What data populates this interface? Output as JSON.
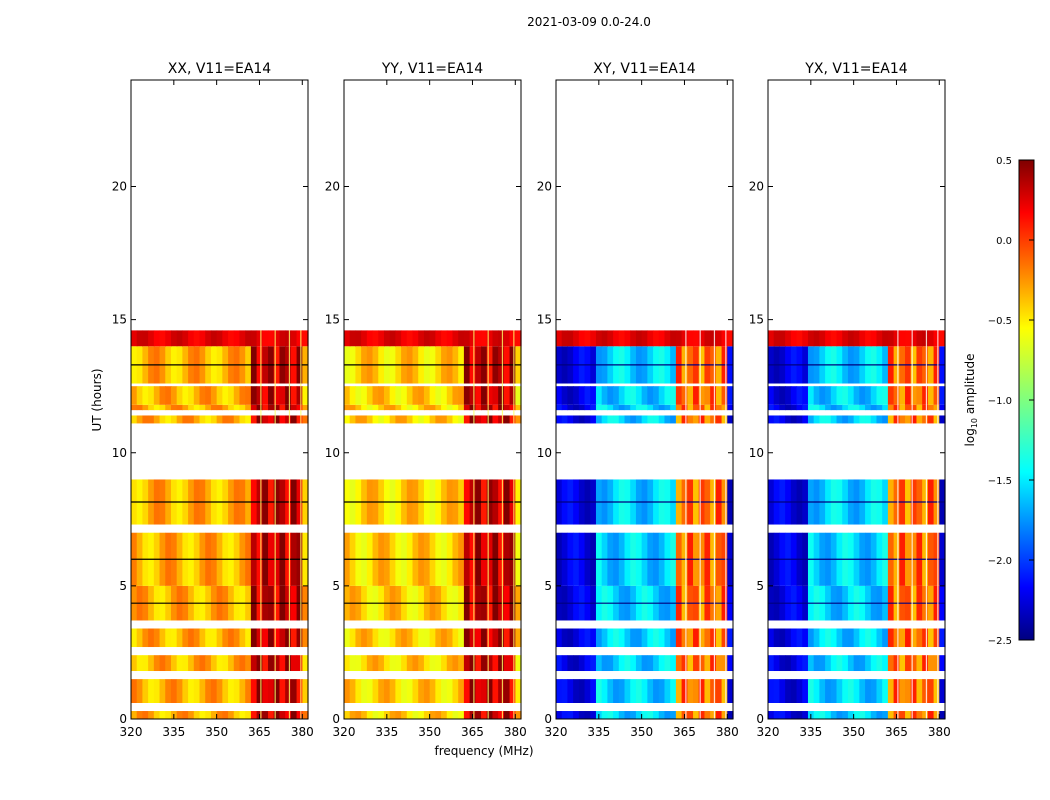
{
  "figure_title": "2021-03-09 0.0-24.0",
  "chart_data": {
    "type": "heatmap",
    "title": "2021-03-09 0.0-24.0",
    "xlabel": "frequency (MHz)",
    "ylabel": "UT (hours)",
    "xlim": [
      320,
      382
    ],
    "ylim": [
      0,
      24
    ],
    "x_ticks": [
      320,
      335,
      350,
      365,
      380
    ],
    "y_ticks": [
      0,
      5,
      10,
      15,
      20
    ],
    "y_tick_labels": [
      "0",
      "5",
      "10",
      "15",
      "20"
    ],
    "panels": [
      {
        "title": "XX, V11=EA14",
        "kind": "auto",
        "typical_log_amplitude": -0.4,
        "hot_band_log_amplitude": 0.3
      },
      {
        "title": "YY, V11=EA14",
        "kind": "auto",
        "typical_log_amplitude": -0.5,
        "hot_band_log_amplitude": 0.3
      },
      {
        "title": "XY, V11=EA14",
        "kind": "cross",
        "typical_log_amplitude": -1.5,
        "hot_band_log_amplitude": -0.2
      },
      {
        "title": "YX, V11=EA14",
        "kind": "cross",
        "typical_log_amplitude": -1.5,
        "hot_band_log_amplitude": -0.2
      }
    ],
    "data_blocks_ut_hours": [
      [
        0.0,
        0.3
      ],
      [
        0.6,
        1.5
      ],
      [
        1.8,
        2.4
      ],
      [
        2.7,
        3.4
      ],
      [
        3.7,
        5.0
      ],
      [
        5.0,
        7.0
      ],
      [
        7.3,
        9.0
      ],
      [
        11.1,
        11.4
      ],
      [
        11.6,
        11.8
      ],
      [
        11.8,
        12.5
      ],
      [
        12.6,
        14.0
      ],
      [
        14.0,
        14.6
      ]
    ],
    "hot_band_mhz": [
      363,
      380
    ],
    "colorbar": {
      "label_prefix": "log",
      "label_subscript": "10",
      "label_suffix": " amplitude",
      "range": [
        -2.5,
        0.5
      ],
      "ticks": [
        0.5,
        0.0,
        -0.5,
        -1.0,
        -1.5,
        -2.0,
        -2.5
      ],
      "tick_labels": [
        "0.5",
        "0.0",
        "−0.5",
        "−1.0",
        "−1.5",
        "−2.0",
        "−2.5"
      ],
      "colormap": "jet"
    }
  }
}
